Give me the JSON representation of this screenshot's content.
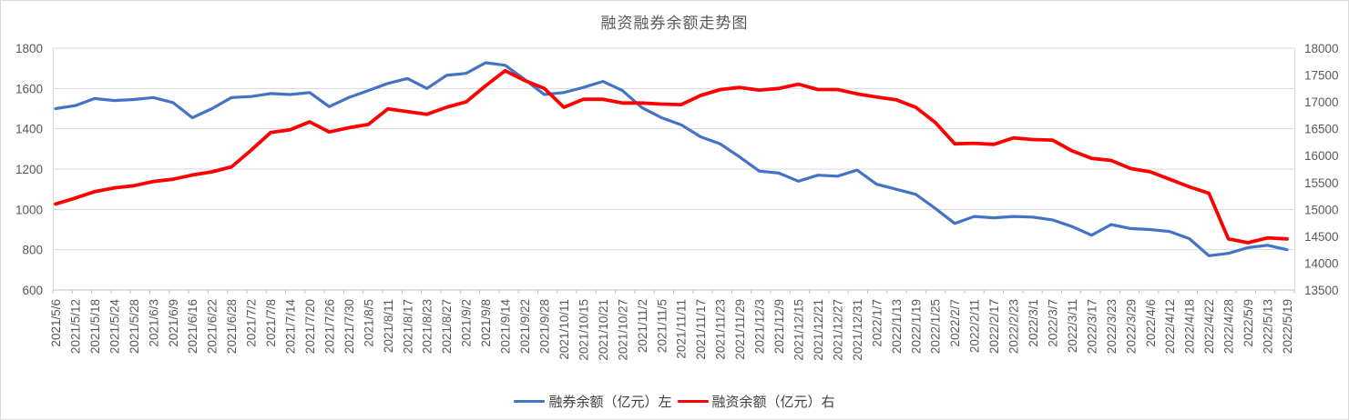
{
  "chart_data": {
    "type": "line",
    "title": "融资融券余额走势图",
    "legend_position": "bottom",
    "grid": true,
    "categories": [
      "2021/5/6",
      "2021/5/12",
      "2021/5/18",
      "2021/5/24",
      "2021/5/28",
      "2021/6/3",
      "2021/6/9",
      "2021/6/16",
      "2021/6/22",
      "2021/6/28",
      "2021/7/2",
      "2021/7/8",
      "2021/7/14",
      "2021/7/20",
      "2021/7/26",
      "2021/7/30",
      "2021/8/5",
      "2021/8/11",
      "2021/8/17",
      "2021/8/23",
      "2021/8/27",
      "2021/9/2",
      "2021/9/8",
      "2021/9/14",
      "2021/9/22",
      "2021/9/28",
      "2021/10/11",
      "2021/10/15",
      "2021/10/21",
      "2021/10/27",
      "2021/11/2",
      "2021/11/5",
      "2021/11/11",
      "2021/11/17",
      "2021/11/23",
      "2021/11/29",
      "2021/12/3",
      "2021/12/9",
      "2021/12/15",
      "2021/12/21",
      "2021/12/27",
      "2021/12/31",
      "2022/1/7",
      "2022/1/13",
      "2022/1/19",
      "2022/1/25",
      "2022/2/7",
      "2022/2/11",
      "2022/2/17",
      "2022/2/23",
      "2022/3/1",
      "2022/3/7",
      "2022/3/11",
      "2022/3/17",
      "2022/3/23",
      "2022/3/29",
      "2022/4/6",
      "2022/4/12",
      "2022/4/18",
      "2022/4/22",
      "2022/4/28",
      "2022/5/9",
      "2022/5/13",
      "2022/5/19"
    ],
    "series": [
      {
        "name": "融券余额（亿元）左",
        "axis": "left",
        "color": "#4472C4",
        "values": [
          1500,
          1515,
          1550,
          1540,
          1545,
          1555,
          1530,
          1455,
          1500,
          1555,
          1560,
          1575,
          1570,
          1580,
          1510,
          1555,
          1590,
          1625,
          1650,
          1600,
          1665,
          1675,
          1728,
          1715,
          1645,
          1570,
          1580,
          1605,
          1635,
          1590,
          1505,
          1455,
          1420,
          1360,
          1325,
          1260,
          1190,
          1180,
          1140,
          1170,
          1165,
          1195,
          1125,
          1100,
          1075,
          1005,
          930,
          965,
          958,
          965,
          962,
          948,
          915,
          872,
          925,
          905,
          900,
          890,
          855,
          770,
          782,
          810,
          822,
          800
        ]
      },
      {
        "name": "融资余额（亿元）右",
        "axis": "right",
        "color": "#FF0000",
        "values": [
          15100,
          15210,
          15330,
          15400,
          15440,
          15520,
          15560,
          15640,
          15700,
          15790,
          16100,
          16430,
          16480,
          16630,
          16440,
          16520,
          16580,
          16870,
          16820,
          16770,
          16900,
          17000,
          17300,
          17580,
          17400,
          17250,
          16900,
          17050,
          17050,
          16980,
          16980,
          16960,
          16950,
          17120,
          17230,
          17270,
          17220,
          17250,
          17330,
          17230,
          17230,
          17150,
          17090,
          17040,
          16900,
          16620,
          16220,
          16230,
          16210,
          16330,
          16300,
          16290,
          16090,
          15950,
          15910,
          15760,
          15700,
          15560,
          15420,
          15300,
          14450,
          14380,
          14470,
          14450
        ]
      }
    ],
    "left_axis": {
      "min": 600,
      "max": 1800,
      "step": 200,
      "ticks": [
        600,
        800,
        1000,
        1200,
        1400,
        1600,
        1800
      ]
    },
    "right_axis": {
      "min": 13500,
      "max": 18000,
      "step": 500,
      "ticks": [
        13500,
        14000,
        14500,
        15000,
        15500,
        16000,
        16500,
        17000,
        17500,
        18000
      ]
    },
    "colors": {
      "gridline": "#D9D9D9",
      "axis_line": "#BFBFBF",
      "text": "#595959"
    }
  }
}
